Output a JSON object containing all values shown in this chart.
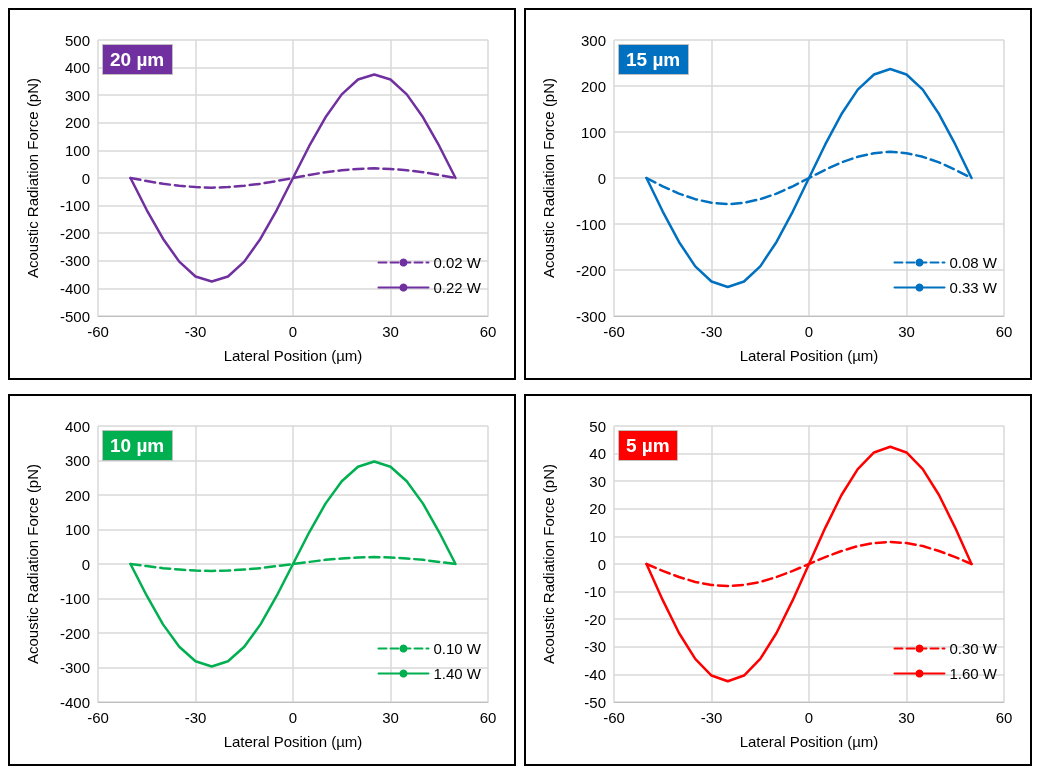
{
  "chart_data": [
    {
      "type": "line",
      "title": "20 µm",
      "xlabel": "Lateral Position (µm)",
      "ylabel": "Acoustic Radiation Force (pN)",
      "x": [
        -50,
        -45,
        -40,
        -35,
        -30,
        -25,
        -20,
        -15,
        -10,
        -5,
        0,
        5,
        10,
        15,
        20,
        25,
        30,
        35,
        40,
        45,
        50
      ],
      "xlim": [
        -60,
        60
      ],
      "xticks": [
        -60,
        -30,
        0,
        30,
        60
      ],
      "ylim": [
        -500,
        500
      ],
      "yticks": [
        -500,
        -400,
        -300,
        -200,
        -100,
        0,
        100,
        200,
        300,
        400,
        500
      ],
      "grid": true,
      "legend": "bottom right",
      "marker": "none",
      "series": [
        {
          "name": "0.02 W",
          "color": "#7030a0",
          "line_style": "dashed",
          "values": [
            0,
            -11,
            -21,
            -28,
            -33,
            -35,
            -33,
            -28,
            -21,
            -11,
            0,
            11,
            21,
            28,
            33,
            35,
            33,
            28,
            21,
            11,
            0
          ]
        },
        {
          "name": "0.22 W",
          "color": "#7030a0",
          "line_style": "solid",
          "values": [
            0,
            -116,
            -220,
            -303,
            -357,
            -375,
            -357,
            -303,
            -220,
            -116,
            0,
            116,
            220,
            303,
            357,
            375,
            357,
            303,
            220,
            116,
            0
          ]
        }
      ]
    },
    {
      "type": "line",
      "title": "15 µm",
      "xlabel": "Lateral Position (µm)",
      "ylabel": "Acoustic Radiation Force (pN)",
      "x": [
        -50,
        -45,
        -40,
        -35,
        -30,
        -25,
        -20,
        -15,
        -10,
        -5,
        0,
        5,
        10,
        15,
        20,
        25,
        30,
        35,
        40,
        45,
        50
      ],
      "xlim": [
        -60,
        60
      ],
      "xticks": [
        -60,
        -30,
        0,
        30,
        60
      ],
      "ylim": [
        -300,
        300
      ],
      "yticks": [
        -300,
        -200,
        -100,
        0,
        100,
        200,
        300
      ],
      "grid": true,
      "legend": "bottom right",
      "marker": "none",
      "series": [
        {
          "name": "0.08 W",
          "color": "#0070c0",
          "line_style": "dashed",
          "values": [
            0,
            -18,
            -34,
            -46,
            -54,
            -57,
            -54,
            -46,
            -34,
            -18,
            0,
            18,
            34,
            46,
            54,
            57,
            54,
            46,
            34,
            18,
            0
          ]
        },
        {
          "name": "0.33 W",
          "color": "#0070c0",
          "line_style": "solid",
          "values": [
            0,
            -73,
            -139,
            -192,
            -225,
            -237,
            -225,
            -192,
            -139,
            -73,
            0,
            73,
            139,
            192,
            225,
            237,
            225,
            192,
            139,
            73,
            0
          ]
        }
      ]
    },
    {
      "type": "line",
      "title": "10 µm",
      "xlabel": "Lateral Position (µm)",
      "ylabel": "Acoustic Radiation Force (pN)",
      "x": [
        -50,
        -45,
        -40,
        -35,
        -30,
        -25,
        -20,
        -15,
        -10,
        -5,
        0,
        5,
        10,
        15,
        20,
        25,
        30,
        35,
        40,
        45,
        50
      ],
      "xlim": [
        -60,
        60
      ],
      "xticks": [
        -60,
        -30,
        0,
        30,
        60
      ],
      "ylim": [
        -400,
        400
      ],
      "yticks": [
        -400,
        -300,
        -200,
        -100,
        0,
        100,
        200,
        300,
        400
      ],
      "grid": true,
      "legend": "bottom right",
      "marker": "none",
      "series": [
        {
          "name": "0.10 W",
          "color": "#00b050",
          "line_style": "dashed",
          "values": [
            0,
            -6,
            -12,
            -16,
            -19,
            -20,
            -19,
            -16,
            -12,
            -6,
            0,
            6,
            12,
            16,
            19,
            20,
            19,
            16,
            12,
            6,
            0
          ]
        },
        {
          "name": "1.40 W",
          "color": "#00b050",
          "line_style": "solid",
          "values": [
            0,
            -92,
            -175,
            -240,
            -282,
            -297,
            -282,
            -240,
            -175,
            -92,
            0,
            92,
            175,
            240,
            282,
            297,
            282,
            240,
            175,
            92,
            0
          ]
        }
      ]
    },
    {
      "type": "line",
      "title": "5 µm",
      "xlabel": "Lateral Position (µm)",
      "ylabel": "Acoustic Radiation Force (pN)",
      "x": [
        -50,
        -45,
        -40,
        -35,
        -30,
        -25,
        -20,
        -15,
        -10,
        -5,
        0,
        5,
        10,
        15,
        20,
        25,
        30,
        35,
        40,
        45,
        50
      ],
      "xlim": [
        -60,
        60
      ],
      "xticks": [
        -60,
        -30,
        0,
        30,
        60
      ],
      "ylim": [
        -50,
        50
      ],
      "yticks": [
        -50,
        -40,
        -30,
        -20,
        -10,
        0,
        10,
        20,
        30,
        40,
        50
      ],
      "grid": true,
      "legend": "bottom right",
      "marker": "none",
      "series": [
        {
          "name": "0.30 W",
          "color": "#ff0000",
          "line_style": "dashed",
          "values": [
            0,
            -2.5,
            -4.7,
            -6.5,
            -7.6,
            -8,
            -7.6,
            -6.5,
            -4.7,
            -2.5,
            0,
            2.5,
            4.7,
            6.5,
            7.6,
            8,
            7.6,
            6.5,
            4.7,
            2.5,
            0
          ]
        },
        {
          "name": "1.60 W",
          "color": "#ff0000",
          "line_style": "solid",
          "values": [
            0,
            -13.1,
            -25,
            -34.4,
            -40.4,
            -42.5,
            -40.4,
            -34.4,
            -25,
            -13.1,
            0,
            13.1,
            25,
            34.4,
            40.4,
            42.5,
            40.4,
            34.4,
            25,
            13.1,
            0
          ]
        }
      ]
    }
  ]
}
